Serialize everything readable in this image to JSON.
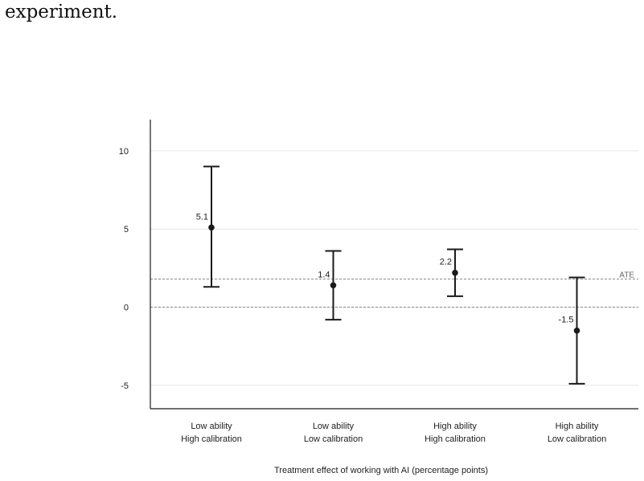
{
  "page": {
    "lead_text": "experiment."
  },
  "chart_data": {
    "type": "scatter",
    "title": "",
    "xlabel": "Treatment effect of working with AI (percentage points)",
    "ylabel": "",
    "ylim": [
      -6.5,
      12
    ],
    "yticks": [
      10,
      5,
      0,
      -5
    ],
    "ytick_labels": [
      "10",
      "5",
      "0",
      "-5"
    ],
    "grid": "horizontal",
    "categories": [
      [
        "Low ability",
        "High calibration"
      ],
      [
        "Low ability",
        "Low calibration"
      ],
      [
        "High ability",
        "High calibration"
      ],
      [
        "High ability",
        "Low calibration"
      ]
    ],
    "values": [
      5.1,
      1.4,
      2.2,
      -1.5
    ],
    "value_labels": [
      "5.1",
      "1.4",
      "2.2",
      "-1.5"
    ],
    "ci_lower": [
      1.3,
      -0.8,
      0.7,
      -4.9
    ],
    "ci_upper": [
      9.0,
      3.6,
      3.7,
      1.9
    ],
    "reference_lines": [
      {
        "label": "ATE",
        "value": 1.8,
        "style": "dashed"
      },
      {
        "label": "",
        "value": 0,
        "style": "dashed"
      }
    ],
    "colors": {
      "marker": "#1a1a1a",
      "axis": "#1a1a1a",
      "grid": "#e6e6e6",
      "reference": "#8a8a8a"
    }
  }
}
